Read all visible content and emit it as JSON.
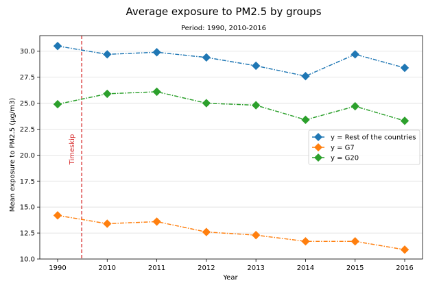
{
  "chart_data": {
    "type": "line",
    "title": "Average exposure to PM2.5 by groups",
    "subtitle": "Period: 1990, 2010-2016",
    "xlabel": "Year",
    "ylabel": "Mean exposure to PM2.5 (µg/m3)",
    "categories": [
      "1990",
      "2010",
      "2011",
      "2012",
      "2013",
      "2014",
      "2015",
      "2016"
    ],
    "ylim": [
      10.0,
      31.5
    ],
    "yticks": [
      "10.0",
      "12.5",
      "15.0",
      "17.5",
      "20.0",
      "22.5",
      "25.0",
      "27.5",
      "30.0"
    ],
    "grid": "horizontal",
    "legend_position": "right",
    "series": [
      {
        "name": "y = Rest of the countries",
        "color": "#1f77b4",
        "values": [
          30.5,
          29.7,
          29.9,
          29.4,
          28.6,
          27.6,
          29.7,
          28.4
        ]
      },
      {
        "name": "y = G7",
        "color": "#ff7f0e",
        "values": [
          14.2,
          13.4,
          13.6,
          12.6,
          12.3,
          11.7,
          11.7,
          10.9
        ]
      },
      {
        "name": "y = G20",
        "color": "#2ca02c",
        "values": [
          24.9,
          25.9,
          26.1,
          25.0,
          24.8,
          23.4,
          24.7,
          23.3
        ]
      }
    ],
    "annotation": {
      "text": "Timeskip",
      "color": "#d62728",
      "after_category": "1990"
    }
  }
}
